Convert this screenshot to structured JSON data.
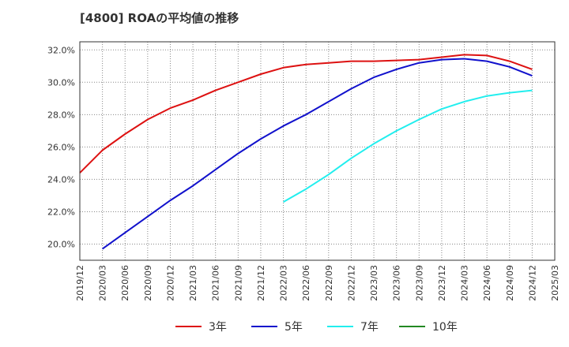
{
  "chart_data": {
    "type": "line",
    "title": "[4800]  ROAの平均値の推移",
    "xlabel": "",
    "ylabel": "",
    "ylim": [
      19.0,
      32.5
    ],
    "yticks": [
      20,
      22,
      24,
      26,
      28,
      30,
      32
    ],
    "ytick_labels": [
      "20.0%",
      "22.0%",
      "24.0%",
      "26.0%",
      "28.0%",
      "30.0%",
      "32.0%"
    ],
    "xticks": [
      "2019/12",
      "2020/03",
      "2020/06",
      "2020/09",
      "2020/12",
      "2021/03",
      "2021/06",
      "2021/09",
      "2021/12",
      "2022/03",
      "2022/06",
      "2022/09",
      "2022/12",
      "2023/03",
      "2023/06",
      "2023/09",
      "2023/12",
      "2024/03",
      "2024/06",
      "2024/09",
      "2024/12",
      "2025/03"
    ],
    "grid": true,
    "legend_position": "bottom",
    "series": [
      {
        "name": "3年",
        "color": "#dd1111",
        "x": [
          "2019/12",
          "2020/03",
          "2020/06",
          "2020/09",
          "2020/12",
          "2021/03",
          "2021/06",
          "2021/09",
          "2021/12",
          "2022/03",
          "2022/06",
          "2022/09",
          "2022/12",
          "2023/03",
          "2023/06",
          "2023/09",
          "2023/12",
          "2024/03",
          "2024/06",
          "2024/09",
          "2024/12"
        ],
        "values": [
          24.4,
          25.8,
          26.8,
          27.7,
          28.4,
          28.9,
          29.5,
          30.0,
          30.5,
          30.9,
          31.1,
          31.2,
          31.3,
          31.3,
          31.35,
          31.4,
          31.55,
          31.7,
          31.65,
          31.3,
          30.8
        ]
      },
      {
        "name": "5年",
        "color": "#1111cc",
        "x": [
          "2020/03",
          "2020/06",
          "2020/09",
          "2020/12",
          "2021/03",
          "2021/06",
          "2021/09",
          "2021/12",
          "2022/03",
          "2022/06",
          "2022/09",
          "2022/12",
          "2023/03",
          "2023/06",
          "2023/09",
          "2023/12",
          "2024/03",
          "2024/06",
          "2024/09",
          "2024/12"
        ],
        "values": [
          19.7,
          20.7,
          21.7,
          22.7,
          23.6,
          24.6,
          25.6,
          26.5,
          27.3,
          28.0,
          28.8,
          29.6,
          30.3,
          30.8,
          31.2,
          31.4,
          31.45,
          31.3,
          30.95,
          30.4
        ]
      },
      {
        "name": "7年",
        "color": "#22eeee",
        "x": [
          "2022/03",
          "2022/06",
          "2022/09",
          "2022/12",
          "2023/03",
          "2023/06",
          "2023/09",
          "2023/12",
          "2024/03",
          "2024/06",
          "2024/09",
          "2024/12"
        ],
        "values": [
          22.6,
          23.4,
          24.3,
          25.3,
          26.2,
          27.0,
          27.7,
          28.35,
          28.8,
          29.15,
          29.35,
          29.5
        ]
      },
      {
        "name": "10年",
        "color": "#228822",
        "x": [],
        "values": []
      }
    ]
  }
}
